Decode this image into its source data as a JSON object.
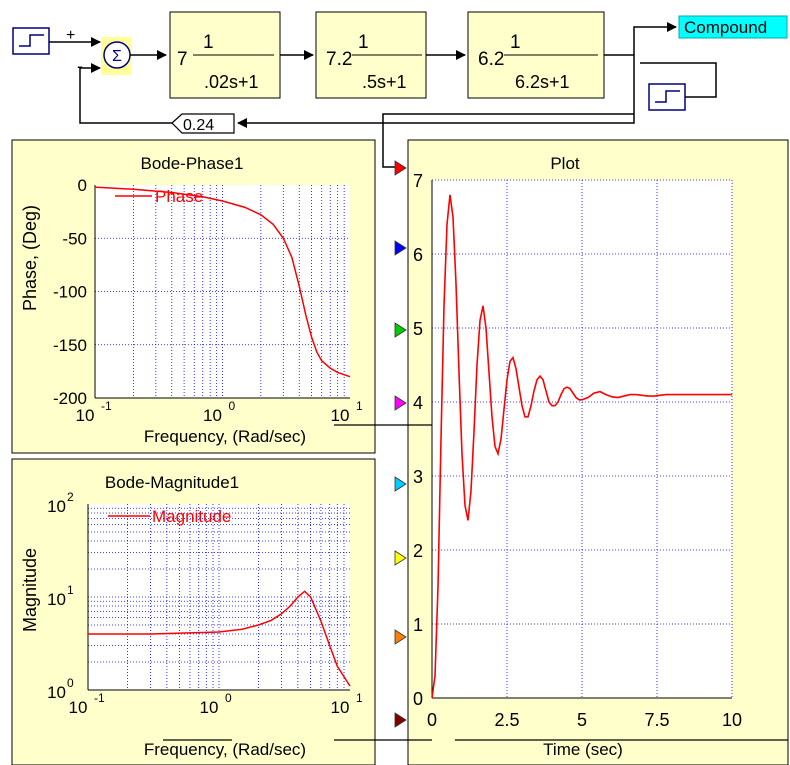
{
  "diagram": {
    "summing_signs": {
      "plus": "+",
      "minus": "-"
    },
    "sum_symbol": "Σ",
    "blocks": [
      {
        "gain": "7",
        "num": "1",
        "den": ".02s+1"
      },
      {
        "gain": "7.2",
        "num": "1",
        "den": ".5s+1"
      },
      {
        "gain": "6.2",
        "num": "1",
        "den": "6.2s+1"
      }
    ],
    "feedback_gain": "0.24",
    "compound_label": "Compound"
  },
  "colors": {
    "panel_bg": "#ffffcc",
    "trace": "#ff0000",
    "grid": "#0000ff",
    "compound_bg": "#00ffff",
    "sum_bg": "#ffff99",
    "port_colors": [
      "#ff0000",
      "#0000ff",
      "#00cc00",
      "#ff00ff",
      "#00ccff",
      "#ffff00",
      "#ff8000",
      "#800000"
    ]
  },
  "phase_plot": {
    "title": "Bode-Phase1",
    "ylabel": "Phase, (Deg)",
    "xlabel": "Frequency, (Rad/sec)",
    "legend": "Phase",
    "yticks": [
      "0",
      "-50",
      "-100",
      "-150",
      "-200"
    ],
    "xticks": [
      "10",
      "10",
      "10"
    ],
    "xexps": [
      "-1",
      "0",
      "1"
    ]
  },
  "mag_plot": {
    "title": "Bode-Magnitude1",
    "ylabel": "Magnitude",
    "xlabel": "Frequency, (Rad/sec)",
    "legend": "Magnitude",
    "yticks": [
      "10",
      "10",
      "10"
    ],
    "yexps": [
      "2",
      "1",
      "0"
    ],
    "xticks": [
      "10",
      "10",
      "10"
    ],
    "xexps": [
      "-1",
      "0",
      "1"
    ]
  },
  "time_plot": {
    "title": "Plot",
    "xlabel": "Time (sec)",
    "yticks": [
      "0",
      "1",
      "2",
      "3",
      "4",
      "5",
      "6",
      "7"
    ],
    "xticks": [
      "0",
      "2.5",
      "5",
      "7.5",
      "10"
    ]
  },
  "chart_data": [
    {
      "type": "line",
      "title": "Bode-Phase1",
      "xlabel": "Frequency, (Rad/sec)",
      "ylabel": "Phase, (Deg)",
      "xscale": "log",
      "xlim": [
        0.1,
        10
      ],
      "ylim": [
        -200,
        0
      ],
      "grid": true,
      "series": [
        {
          "name": "Phase",
          "x": [
            0.1,
            0.2,
            0.4,
            0.7,
            1.0,
            1.5,
            2.0,
            2.5,
            3.0,
            3.5,
            4.0,
            4.5,
            5.0,
            5.5,
            6.0,
            7.0,
            8.0,
            10.0
          ],
          "y": [
            -2,
            -4,
            -7,
            -11,
            -15,
            -21,
            -28,
            -37,
            -50,
            -68,
            -95,
            -122,
            -143,
            -157,
            -165,
            -172,
            -176,
            -180
          ]
        }
      ]
    },
    {
      "type": "line",
      "title": "Bode-Magnitude1",
      "xlabel": "Frequency, (Rad/sec)",
      "ylabel": "Magnitude",
      "xscale": "log",
      "yscale": "log",
      "xlim": [
        0.1,
        10
      ],
      "ylim": [
        1,
        100
      ],
      "grid": true,
      "series": [
        {
          "name": "Magnitude",
          "x": [
            0.1,
            0.3,
            1.0,
            1.5,
            2.0,
            2.5,
            3.0,
            3.5,
            4.0,
            4.5,
            5.0,
            6.0,
            7.0,
            8.0,
            10.0
          ],
          "y": [
            4,
            4,
            4.2,
            4.5,
            5,
            5.6,
            6.6,
            8,
            10,
            11.5,
            10,
            5.5,
            3,
            1.8,
            1.1
          ]
        }
      ]
    },
    {
      "type": "line",
      "title": "Plot",
      "xlabel": "Time (sec)",
      "ylabel": "",
      "xlim": [
        0,
        10
      ],
      "ylim": [
        0,
        7
      ],
      "grid": true,
      "series": [
        {
          "x": [
            0,
            0.1,
            0.2,
            0.3,
            0.4,
            0.5,
            0.6,
            0.7,
            0.8,
            0.9,
            1.0,
            1.1,
            1.2,
            1.3,
            1.4,
            1.5,
            1.6,
            1.7,
            1.8,
            1.9,
            2.0,
            2.1,
            2.2,
            2.3,
            2.4,
            2.5,
            2.6,
            2.7,
            2.8,
            2.9,
            3.0,
            3.1,
            3.2,
            3.3,
            3.4,
            3.5,
            3.6,
            3.7,
            3.8,
            3.9,
            4.0,
            4.1,
            4.2,
            4.3,
            4.4,
            4.5,
            4.6,
            4.7,
            4.8,
            4.9,
            5.0,
            5.2,
            5.4,
            5.6,
            5.8,
            6.0,
            6.2,
            6.4,
            6.6,
            6.8,
            7.0,
            7.2,
            7.4,
            7.6,
            7.8,
            8.0,
            8.5,
            9.0,
            9.5,
            10.0
          ],
          "y": [
            0,
            0.3,
            1.5,
            3.5,
            5.3,
            6.4,
            6.8,
            6.5,
            5.6,
            4.4,
            3.3,
            2.6,
            2.4,
            2.8,
            3.6,
            4.5,
            5.1,
            5.3,
            5.0,
            4.4,
            3.8,
            3.4,
            3.3,
            3.5,
            3.9,
            4.3,
            4.55,
            4.6,
            4.45,
            4.2,
            3.95,
            3.8,
            3.8,
            3.95,
            4.15,
            4.3,
            4.35,
            4.3,
            4.15,
            4.0,
            3.95,
            3.95,
            4.0,
            4.1,
            4.18,
            4.2,
            4.18,
            4.12,
            4.06,
            4.03,
            4.03,
            4.06,
            4.12,
            4.14,
            4.1,
            4.07,
            4.06,
            4.08,
            4.1,
            4.1,
            4.09,
            4.08,
            4.08,
            4.09,
            4.1,
            4.1,
            4.1,
            4.1,
            4.1,
            4.1
          ]
        }
      ]
    }
  ]
}
